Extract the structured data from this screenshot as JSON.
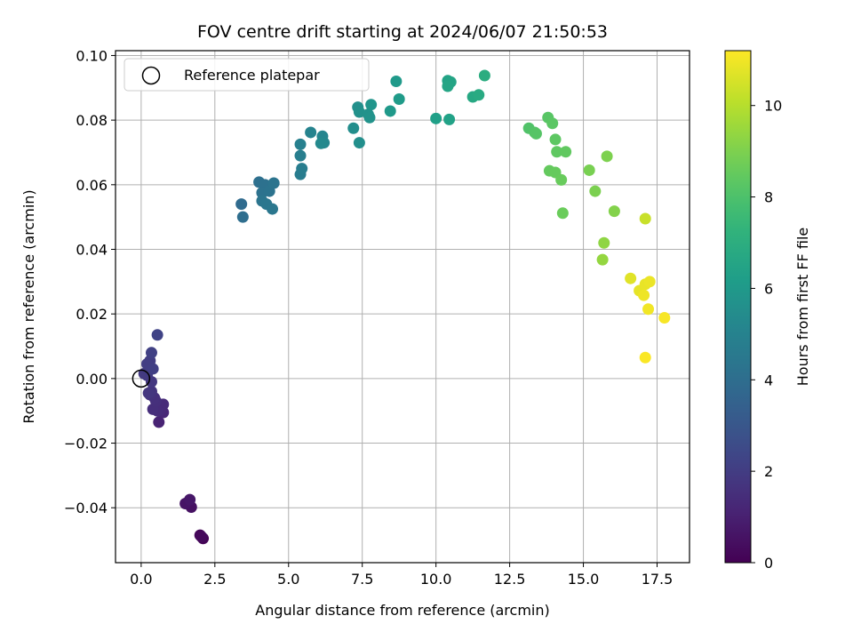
{
  "chart_data": {
    "type": "scatter",
    "title": "FOV centre drift starting at 2024/06/07 21:50:53",
    "xlabel": "Angular distance from reference (arcmin)",
    "ylabel": "Rotation from reference (arcmin)",
    "xlim": [
      -0.87,
      18.6
    ],
    "ylim": [
      -0.057,
      0.1015
    ],
    "xticks": [
      0.0,
      2.5,
      5.0,
      7.5,
      10.0,
      12.5,
      15.0,
      17.5
    ],
    "xtick_labels": [
      "0.0",
      "2.5",
      "5.0",
      "7.5",
      "10.0",
      "12.5",
      "15.0",
      "17.5"
    ],
    "yticks": [
      -0.04,
      -0.02,
      0.0,
      0.02,
      0.04,
      0.06,
      0.08,
      0.1
    ],
    "ytick_labels": [
      "−0.04",
      "−0.02",
      "0.00",
      "0.02",
      "0.04",
      "0.06",
      "0.08",
      "0.10"
    ],
    "grid": true,
    "legend": {
      "placement": "top-left",
      "entries": [
        "Reference platepar"
      ]
    },
    "reference_point": {
      "x": 0.0,
      "y": 0.0
    },
    "colorbar": {
      "label": "Hours from first FF file",
      "colormap": "viridis",
      "range": [
        0,
        11.2
      ],
      "ticks": [
        0,
        2,
        4,
        6,
        8,
        10
      ],
      "tick_labels": [
        "0",
        "2",
        "4",
        "6",
        "8",
        "10"
      ]
    },
    "points": [
      {
        "x": 2.1,
        "y": -0.0495,
        "t": 0.05
      },
      {
        "x": 2.0,
        "y": -0.0485,
        "t": 0.15
      },
      {
        "x": 2.05,
        "y": -0.049,
        "t": 0.25
      },
      {
        "x": 1.7,
        "y": -0.0398,
        "t": 0.5
      },
      {
        "x": 1.5,
        "y": -0.0387,
        "t": 0.6
      },
      {
        "x": 1.65,
        "y": -0.0375,
        "t": 0.7
      },
      {
        "x": 0.6,
        "y": -0.0135,
        "t": 1.1
      },
      {
        "x": 0.75,
        "y": -0.0105,
        "t": 1.2
      },
      {
        "x": 0.65,
        "y": -0.0098,
        "t": 1.3
      },
      {
        "x": 0.75,
        "y": -0.008,
        "t": 1.35
      },
      {
        "x": 0.55,
        "y": -0.01,
        "t": 1.4
      },
      {
        "x": 0.4,
        "y": -0.0095,
        "t": 1.45
      },
      {
        "x": 0.5,
        "y": -0.007,
        "t": 1.5
      },
      {
        "x": 0.45,
        "y": -0.006,
        "t": 1.55
      },
      {
        "x": 0.3,
        "y": -0.005,
        "t": 1.6
      },
      {
        "x": 0.35,
        "y": -0.004,
        "t": 1.7
      },
      {
        "x": 0.25,
        "y": -0.0045,
        "t": 1.75
      },
      {
        "x": 0.35,
        "y": -0.001,
        "t": 1.8
      },
      {
        "x": 0.2,
        "y": 0.001,
        "t": 1.85
      },
      {
        "x": 0.1,
        "y": 0.0015,
        "t": 1.9
      },
      {
        "x": 0.25,
        "y": 0.0025,
        "t": 1.95
      },
      {
        "x": 0.3,
        "y": 0.0055,
        "t": 2.0
      },
      {
        "x": 0.2,
        "y": 0.0045,
        "t": 2.05
      },
      {
        "x": 0.4,
        "y": 0.003,
        "t": 2.1
      },
      {
        "x": 0.35,
        "y": 0.008,
        "t": 2.15
      },
      {
        "x": 0.55,
        "y": 0.0135,
        "t": 2.25
      },
      {
        "x": 3.4,
        "y": 0.054,
        "t": 3.9
      },
      {
        "x": 3.45,
        "y": 0.05,
        "t": 4.0
      },
      {
        "x": 4.0,
        "y": 0.0608,
        "t": 4.1
      },
      {
        "x": 4.2,
        "y": 0.06,
        "t": 4.15
      },
      {
        "x": 4.1,
        "y": 0.0575,
        "t": 4.2
      },
      {
        "x": 4.35,
        "y": 0.058,
        "t": 4.25
      },
      {
        "x": 4.5,
        "y": 0.0605,
        "t": 4.3
      },
      {
        "x": 4.1,
        "y": 0.055,
        "t": 4.35
      },
      {
        "x": 4.25,
        "y": 0.054,
        "t": 4.4
      },
      {
        "x": 4.45,
        "y": 0.0525,
        "t": 4.45
      },
      {
        "x": 5.4,
        "y": 0.0632,
        "t": 4.7
      },
      {
        "x": 5.45,
        "y": 0.065,
        "t": 4.75
      },
      {
        "x": 5.4,
        "y": 0.069,
        "t": 4.8
      },
      {
        "x": 5.4,
        "y": 0.0725,
        "t": 4.9
      },
      {
        "x": 5.75,
        "y": 0.0762,
        "t": 5.0
      },
      {
        "x": 6.15,
        "y": 0.075,
        "t": 5.1
      },
      {
        "x": 6.2,
        "y": 0.073,
        "t": 5.2
      },
      {
        "x": 6.1,
        "y": 0.0728,
        "t": 5.3
      },
      {
        "x": 7.2,
        "y": 0.0775,
        "t": 5.5
      },
      {
        "x": 7.4,
        "y": 0.073,
        "t": 5.55
      },
      {
        "x": 7.35,
        "y": 0.084,
        "t": 5.6
      },
      {
        "x": 7.4,
        "y": 0.0825,
        "t": 5.65
      },
      {
        "x": 7.7,
        "y": 0.0818,
        "t": 5.7
      },
      {
        "x": 7.75,
        "y": 0.0808,
        "t": 5.75
      },
      {
        "x": 7.8,
        "y": 0.0848,
        "t": 5.8
      },
      {
        "x": 8.45,
        "y": 0.0828,
        "t": 6.0
      },
      {
        "x": 8.65,
        "y": 0.092,
        "t": 6.05
      },
      {
        "x": 8.75,
        "y": 0.0865,
        "t": 6.1
      },
      {
        "x": 10.0,
        "y": 0.0805,
        "t": 6.3
      },
      {
        "x": 10.45,
        "y": 0.0802,
        "t": 6.4
      },
      {
        "x": 10.4,
        "y": 0.0922,
        "t": 6.45
      },
      {
        "x": 10.5,
        "y": 0.0918,
        "t": 6.5
      },
      {
        "x": 10.4,
        "y": 0.0905,
        "t": 6.55
      },
      {
        "x": 11.25,
        "y": 0.0872,
        "t": 6.7
      },
      {
        "x": 11.45,
        "y": 0.0878,
        "t": 6.8
      },
      {
        "x": 11.65,
        "y": 0.0938,
        "t": 6.9
      },
      {
        "x": 13.15,
        "y": 0.0775,
        "t": 8.1
      },
      {
        "x": 13.35,
        "y": 0.0762,
        "t": 8.15
      },
      {
        "x": 13.4,
        "y": 0.0758,
        "t": 8.2
      },
      {
        "x": 13.8,
        "y": 0.0808,
        "t": 8.25
      },
      {
        "x": 13.95,
        "y": 0.079,
        "t": 8.3
      },
      {
        "x": 14.05,
        "y": 0.074,
        "t": 8.35
      },
      {
        "x": 14.1,
        "y": 0.0702,
        "t": 8.4
      },
      {
        "x": 14.4,
        "y": 0.0702,
        "t": 8.45
      },
      {
        "x": 13.85,
        "y": 0.0643,
        "t": 8.5
      },
      {
        "x": 14.05,
        "y": 0.0638,
        "t": 8.55
      },
      {
        "x": 14.25,
        "y": 0.0615,
        "t": 8.6
      },
      {
        "x": 14.3,
        "y": 0.0512,
        "t": 8.65
      },
      {
        "x": 15.2,
        "y": 0.0645,
        "t": 8.9
      },
      {
        "x": 15.4,
        "y": 0.058,
        "t": 8.95
      },
      {
        "x": 15.8,
        "y": 0.0688,
        "t": 9.0
      },
      {
        "x": 16.05,
        "y": 0.0518,
        "t": 9.1
      },
      {
        "x": 15.7,
        "y": 0.042,
        "t": 9.3
      },
      {
        "x": 15.65,
        "y": 0.0368,
        "t": 9.4
      },
      {
        "x": 17.1,
        "y": 0.0495,
        "t": 10.3
      },
      {
        "x": 16.6,
        "y": 0.031,
        "t": 10.7
      },
      {
        "x": 16.9,
        "y": 0.0272,
        "t": 10.8
      },
      {
        "x": 17.1,
        "y": 0.0292,
        "t": 10.85
      },
      {
        "x": 17.25,
        "y": 0.03,
        "t": 10.9
      },
      {
        "x": 17.05,
        "y": 0.0258,
        "t": 10.95
      },
      {
        "x": 17.2,
        "y": 0.0215,
        "t": 11.0
      },
      {
        "x": 17.75,
        "y": 0.0188,
        "t": 11.1
      },
      {
        "x": 17.1,
        "y": 0.0065,
        "t": 11.15
      }
    ]
  }
}
